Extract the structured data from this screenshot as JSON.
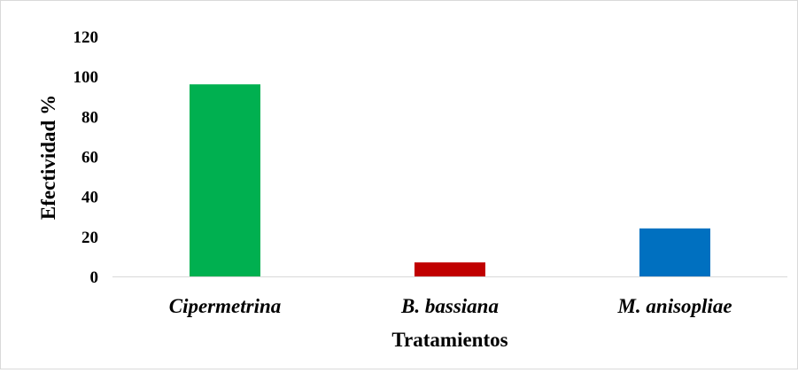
{
  "chart_data": {
    "type": "bar",
    "title": "",
    "xlabel": "Tratamientos",
    "ylabel": "Efectividad  %",
    "categories": [
      "Cipermetrina",
      "B. bassiana",
      "M. anisopliae"
    ],
    "values": [
      96,
      7,
      24
    ],
    "colors": [
      "#00b050",
      "#c00000",
      "#0070c0"
    ],
    "ylim": [
      0,
      120
    ],
    "yticks": [
      0,
      20,
      40,
      60,
      80,
      100,
      120
    ],
    "grid": false,
    "legend": "none"
  }
}
